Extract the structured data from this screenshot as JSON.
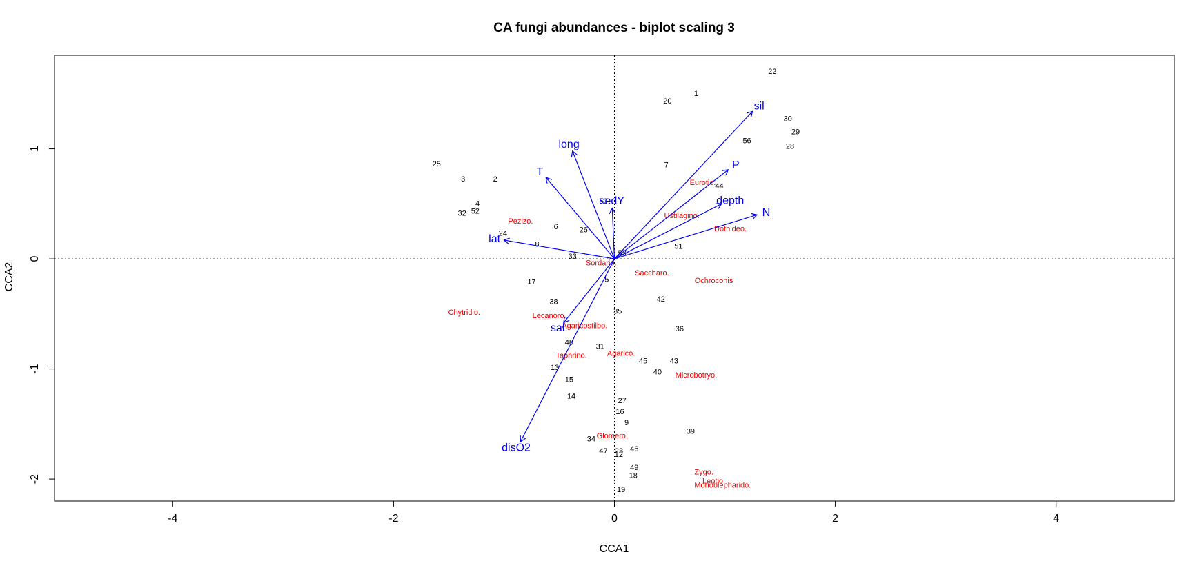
{
  "chart_data": {
    "type": "scatter",
    "title": "CA fungi abundances - biplot scaling 3",
    "xlabel": "CCA1",
    "ylabel": "CCA2",
    "xlim": [
      -5.07,
      5.07
    ],
    "ylim": [
      -2.2,
      1.85
    ],
    "x_ticks": [
      -4,
      -2,
      0,
      2,
      4
    ],
    "y_ticks": [
      -2,
      -1,
      0,
      1
    ],
    "grid": false,
    "reference_lines": "dotted lines at x=0 and y=0",
    "colors": {
      "sites": "#000000",
      "species": "#ee0000",
      "arrows": "#0000ee"
    },
    "sites": [
      {
        "label": "22",
        "x": 1.43,
        "y": 1.7
      },
      {
        "label": "1",
        "x": 0.74,
        "y": 1.5
      },
      {
        "label": "20",
        "x": 0.48,
        "y": 1.43
      },
      {
        "label": "30",
        "x": 1.57,
        "y": 1.27
      },
      {
        "label": "29",
        "x": 1.64,
        "y": 1.15
      },
      {
        "label": "56",
        "x": 1.2,
        "y": 1.07
      },
      {
        "label": "28",
        "x": 1.59,
        "y": 1.02
      },
      {
        "label": "25",
        "x": -1.61,
        "y": 0.86
      },
      {
        "label": "7",
        "x": 0.47,
        "y": 0.85
      },
      {
        "label": "3",
        "x": -1.37,
        "y": 0.72
      },
      {
        "label": "2",
        "x": -1.08,
        "y": 0.72
      },
      {
        "label": "44",
        "x": 0.95,
        "y": 0.66
      },
      {
        "label": "50",
        "x": -0.1,
        "y": 0.52
      },
      {
        "label": "4",
        "x": -1.24,
        "y": 0.5
      },
      {
        "label": "52",
        "x": -1.26,
        "y": 0.43
      },
      {
        "label": "32",
        "x": -1.38,
        "y": 0.41
      },
      {
        "label": "6",
        "x": -0.53,
        "y": 0.29
      },
      {
        "label": "26",
        "x": -0.28,
        "y": 0.26
      },
      {
        "label": "24",
        "x": -1.01,
        "y": 0.23
      },
      {
        "label": "8",
        "x": -0.7,
        "y": 0.13
      },
      {
        "label": "51",
        "x": 0.58,
        "y": 0.11
      },
      {
        "label": "33",
        "x": -0.38,
        "y": 0.02
      },
      {
        "label": "53",
        "x": 0.07,
        "y": 0.05
      },
      {
        "label": "5",
        "x": -0.07,
        "y": -0.19
      },
      {
        "label": "17",
        "x": -0.75,
        "y": -0.21
      },
      {
        "label": "38",
        "x": -0.55,
        "y": -0.39
      },
      {
        "label": "42",
        "x": 0.42,
        "y": -0.37
      },
      {
        "label": "35",
        "x": 0.03,
        "y": -0.48
      },
      {
        "label": "36",
        "x": 0.59,
        "y": -0.64
      },
      {
        "label": "48",
        "x": -0.41,
        "y": -0.76
      },
      {
        "label": "31",
        "x": -0.13,
        "y": -0.8
      },
      {
        "label": "45",
        "x": 0.26,
        "y": -0.93
      },
      {
        "label": "43",
        "x": 0.54,
        "y": -0.93
      },
      {
        "label": "40",
        "x": 0.39,
        "y": -1.03
      },
      {
        "label": "13",
        "x": -0.54,
        "y": -0.99
      },
      {
        "label": "15",
        "x": -0.41,
        "y": -1.1
      },
      {
        "label": "14",
        "x": -0.39,
        "y": -1.25
      },
      {
        "label": "27",
        "x": 0.07,
        "y": -1.29
      },
      {
        "label": "16",
        "x": 0.05,
        "y": -1.39
      },
      {
        "label": "9",
        "x": 0.11,
        "y": -1.49
      },
      {
        "label": "39",
        "x": 0.69,
        "y": -1.57
      },
      {
        "label": "34",
        "x": -0.21,
        "y": -1.64
      },
      {
        "label": "47",
        "x": -0.1,
        "y": -1.75
      },
      {
        "label": "23",
        "x": 0.04,
        "y": -1.75
      },
      {
        "label": "12",
        "x": 0.04,
        "y": -1.78
      },
      {
        "label": "46",
        "x": 0.18,
        "y": -1.73
      },
      {
        "label": "49",
        "x": 0.18,
        "y": -1.9
      },
      {
        "label": "18",
        "x": 0.17,
        "y": -1.97
      },
      {
        "label": "19",
        "x": 0.06,
        "y": -2.1
      }
    ],
    "species": [
      {
        "label": "Eurotio.",
        "x": 0.8,
        "y": 0.69
      },
      {
        "label": "Ustilagino.",
        "x": 0.61,
        "y": 0.39
      },
      {
        "label": "Dothideo.",
        "x": 1.05,
        "y": 0.27
      },
      {
        "label": "Pezizo.",
        "x": -0.85,
        "y": 0.34
      },
      {
        "label": "Sordario.",
        "x": -0.12,
        "y": -0.04
      },
      {
        "label": "Saccharo.",
        "x": 0.34,
        "y": -0.13
      },
      {
        "label": "Ochroconis",
        "x": 0.9,
        "y": -0.2
      },
      {
        "label": "Chytridio.",
        "x": -1.36,
        "y": -0.49
      },
      {
        "label": "Lecanoro.",
        "x": -0.59,
        "y": -0.52
      },
      {
        "label": "Agaricostilbo.",
        "x": -0.27,
        "y": -0.61
      },
      {
        "label": "Taphrino.",
        "x": -0.39,
        "y": -0.88
      },
      {
        "label": "Agarico.",
        "x": 0.06,
        "y": -0.86
      },
      {
        "label": "Microbotryo.",
        "x": 0.74,
        "y": -1.06
      },
      {
        "label": "Glomero.",
        "x": -0.02,
        "y": -1.61
      },
      {
        "label": "Zygo.",
        "x": 0.81,
        "y": -1.94
      },
      {
        "label": "Leotio.",
        "x": 0.9,
        "y": -2.02
      },
      {
        "label": "Monoblepharido.",
        "x": 0.98,
        "y": -2.06
      }
    ],
    "arrows": [
      {
        "label": "sil",
        "x": 1.25,
        "y": 1.34
      },
      {
        "label": "long",
        "x": -0.38,
        "y": 0.98
      },
      {
        "label": "T",
        "x": -0.62,
        "y": 0.74
      },
      {
        "label": "P",
        "x": 1.03,
        "y": 0.81
      },
      {
        "label": "sedY",
        "x": -0.02,
        "y": 0.46
      },
      {
        "label": "depth",
        "x": 0.97,
        "y": 0.5
      },
      {
        "label": "N",
        "x": 1.29,
        "y": 0.4
      },
      {
        "label": "lat",
        "x": -1.0,
        "y": 0.17
      },
      {
        "label": "sal",
        "x": -0.46,
        "y": -0.58
      },
      {
        "label": "disO2",
        "x": -0.85,
        "y": -1.66
      }
    ]
  }
}
